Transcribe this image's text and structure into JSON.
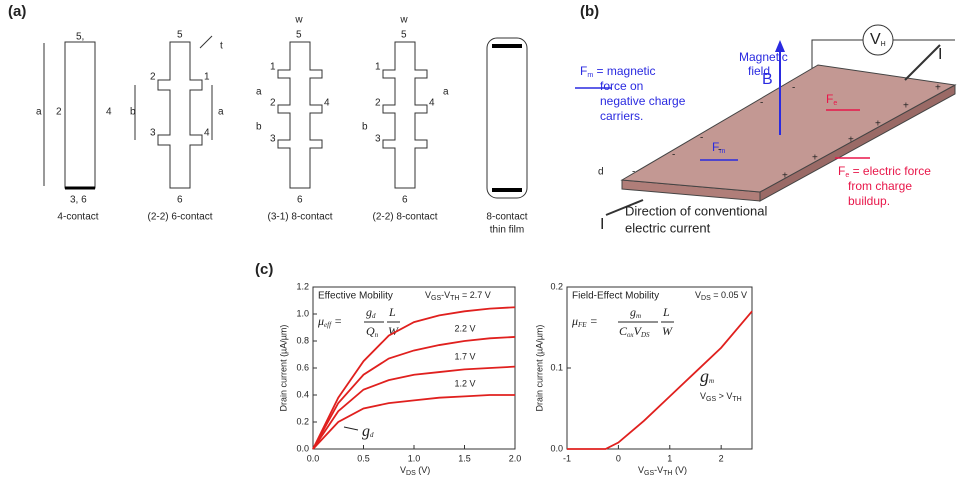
{
  "panel_labels": [
    "(a)",
    "(b)",
    "(c)"
  ],
  "panel_a": {
    "d1": {
      "labels": [
        "5,",
        "a",
        "2",
        "4",
        "3, 6"
      ],
      "caption": "4-contact"
    },
    "d2": {
      "labels": [
        "5",
        "t",
        "2",
        "1",
        "b",
        "a",
        "3",
        "4",
        "6"
      ],
      "caption": "(2-2)  6-contact"
    },
    "d3": {
      "labels": [
        "w",
        "5",
        "1",
        "a",
        "2",
        "4",
        "b",
        "3",
        "6"
      ],
      "caption": "(3-1)  8-contact"
    },
    "d4": {
      "labels": [
        "w",
        "5",
        "1",
        "2",
        "4",
        "a",
        "b",
        "3",
        "6"
      ],
      "caption": "(2-2)  8-contact"
    },
    "d5": {
      "caption": [
        "8-contact",
        "thin film"
      ]
    }
  },
  "panel_b": {
    "vh": [
      "V",
      "H"
    ],
    "current": "I",
    "field": [
      "Magnetic",
      "field"
    ],
    "b": "B",
    "fm_def": [
      "F",
      "m",
      " = magnetic",
      "force on",
      "negative charge",
      "carriers."
    ],
    "fm": [
      "F",
      "m"
    ],
    "fe": [
      "F",
      "e"
    ],
    "fe_def": [
      "F",
      "e",
      " = electric force",
      "from charge",
      "buildup."
    ],
    "d": "d",
    "minus": "-",
    "plus": "+",
    "direction": [
      "Direction of conventional",
      "electric current"
    ]
  },
  "chart_data": [
    {
      "type": "line",
      "title": "Effective Mobility",
      "annotation": [
        "V",
        "GS",
        "-V",
        "TH",
        " = 2.7 V"
      ],
      "formula": [
        "μ",
        "eff",
        " = ",
        "g",
        "d",
        "Q",
        "n",
        "L",
        "W"
      ],
      "curve_label": [
        "g",
        "d"
      ],
      "ylabel": "Drain current (µA/µm)",
      "xlabel": [
        "V",
        "DS",
        " (V)"
      ],
      "x": [
        0,
        0.25,
        0.5,
        0.75,
        1,
        1.25,
        1.5,
        1.75,
        2
      ],
      "series": [
        {
          "color": "#e0201e",
          "values": [
            0,
            0.38,
            0.65,
            0.84,
            0.94,
            0.99,
            1.02,
            1.04,
            1.05
          ]
        },
        {
          "name": "2.2 V",
          "color": "#e0201e",
          "values": [
            0,
            0.34,
            0.55,
            0.67,
            0.73,
            0.77,
            0.8,
            0.82,
            0.83
          ]
        },
        {
          "name": "1.7 V",
          "color": "#e0201e",
          "values": [
            0,
            0.28,
            0.44,
            0.51,
            0.55,
            0.57,
            0.59,
            0.6,
            0.61
          ]
        },
        {
          "name": "1.2 V",
          "color": "#e0201e",
          "values": [
            0,
            0.2,
            0.3,
            0.34,
            0.36,
            0.38,
            0.39,
            0.4,
            0.4
          ]
        }
      ],
      "xlim": [
        0,
        2
      ],
      "ylim": [
        0,
        1.2
      ],
      "xticks": [
        {
          "value": 0,
          "label": "0.0"
        },
        {
          "value": 0.5,
          "label": "0.5"
        },
        {
          "value": 1,
          "label": "1.0"
        },
        {
          "value": 1.5,
          "label": "1.5"
        },
        {
          "value": 2,
          "label": "2.0"
        }
      ],
      "yticks": [
        {
          "value": 0,
          "label": "0.0"
        },
        {
          "value": 0.2,
          "label": "0.2"
        },
        {
          "value": 0.4,
          "label": "0.4"
        },
        {
          "value": 0.6,
          "label": "0.6"
        },
        {
          "value": 0.8,
          "label": "0.8"
        },
        {
          "value": 1,
          "label": "1.0"
        },
        {
          "value": 1.2,
          "label": "1.2"
        }
      ]
    },
    {
      "type": "line",
      "title": "Field-Effect Mobility",
      "annotation": [
        "V",
        "DS",
        " = 0.05 V"
      ],
      "formula": [
        "μ",
        "FE",
        " = ",
        "g",
        "m",
        "C",
        "ox",
        "V",
        "DS",
        "L",
        "W"
      ],
      "curve_label": [
        "g",
        "m"
      ],
      "condition": [
        "V",
        "GS",
        " > V",
        "TH"
      ],
      "ylabel": "Drain current (µA/µm)",
      "xlabel": [
        "V",
        "GS",
        "-V",
        "TH",
        " (V)"
      ],
      "x": [
        -1,
        -0.5,
        -0.25,
        0,
        0.5,
        1,
        1.5,
        2,
        2.6
      ],
      "series": [
        {
          "color": "#e0201e",
          "values": [
            0,
            0,
            0,
            0.008,
            0.035,
            0.065,
            0.095,
            0.125,
            0.17
          ]
        }
      ],
      "xlim": [
        -1,
        2.6
      ],
      "ylim": [
        0,
        0.2
      ],
      "xticks": [
        -1,
        0,
        1,
        2
      ],
      "yticks": [
        {
          "value": 0,
          "label": "0.0"
        },
        {
          "value": 0.1,
          "label": "0.1"
        },
        {
          "value": 0.2,
          "label": "0.2"
        }
      ]
    }
  ]
}
